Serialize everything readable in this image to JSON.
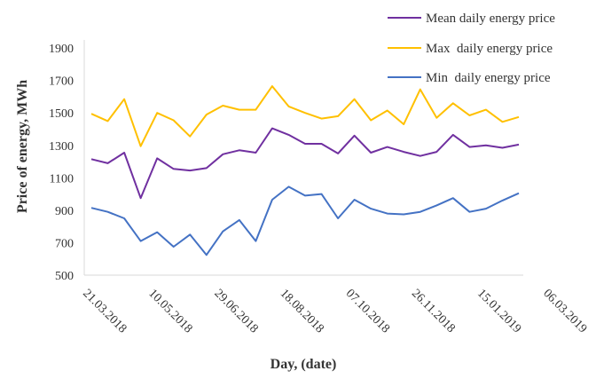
{
  "chart_data": {
    "type": "line",
    "title": "",
    "xlabel": "Day, (date)",
    "ylabel": "Price of energy, MWh",
    "ylim": [
      500,
      1950
    ],
    "yticks": [
      500,
      700,
      900,
      1100,
      1300,
      1500,
      1700,
      1900
    ],
    "xtick_labels": [
      "21.03.2018",
      "10.05.2018",
      "29.06.2018",
      "18.08.2018",
      "07.10.2018",
      "26.11.2018",
      "15.01.2019",
      "06.03.2019"
    ],
    "xtick_indices": [
      0,
      4,
      8,
      12,
      16,
      20,
      24,
      28
    ],
    "grid": false,
    "legend_position": "top-right",
    "series": [
      {
        "name": "Mean daily energy price",
        "color": "#7030a0",
        "values": [
          1215,
          1190,
          1255,
          975,
          1220,
          1155,
          1145,
          1160,
          1245,
          1270,
          1255,
          1405,
          1365,
          1310,
          1310,
          1250,
          1360,
          1255,
          1290,
          1260,
          1235,
          1260,
          1365,
          1290,
          1300,
          1285,
          1305
        ]
      },
      {
        "name": "Max  daily energy price",
        "color": "#ffc000",
        "values": [
          1495,
          1450,
          1585,
          1295,
          1500,
          1455,
          1355,
          1490,
          1545,
          1520,
          1520,
          1665,
          1540,
          1500,
          1465,
          1480,
          1585,
          1455,
          1515,
          1430,
          1645,
          1470,
          1560,
          1485,
          1520,
          1445,
          1475
        ]
      },
      {
        "name": "Min  daily energy price",
        "color": "#4472c4",
        "values": [
          915,
          890,
          850,
          710,
          765,
          675,
          750,
          625,
          770,
          840,
          710,
          965,
          1045,
          990,
          1000,
          850,
          965,
          910,
          880,
          875,
          890,
          930,
          975,
          890,
          910,
          960,
          1005
        ]
      }
    ]
  }
}
